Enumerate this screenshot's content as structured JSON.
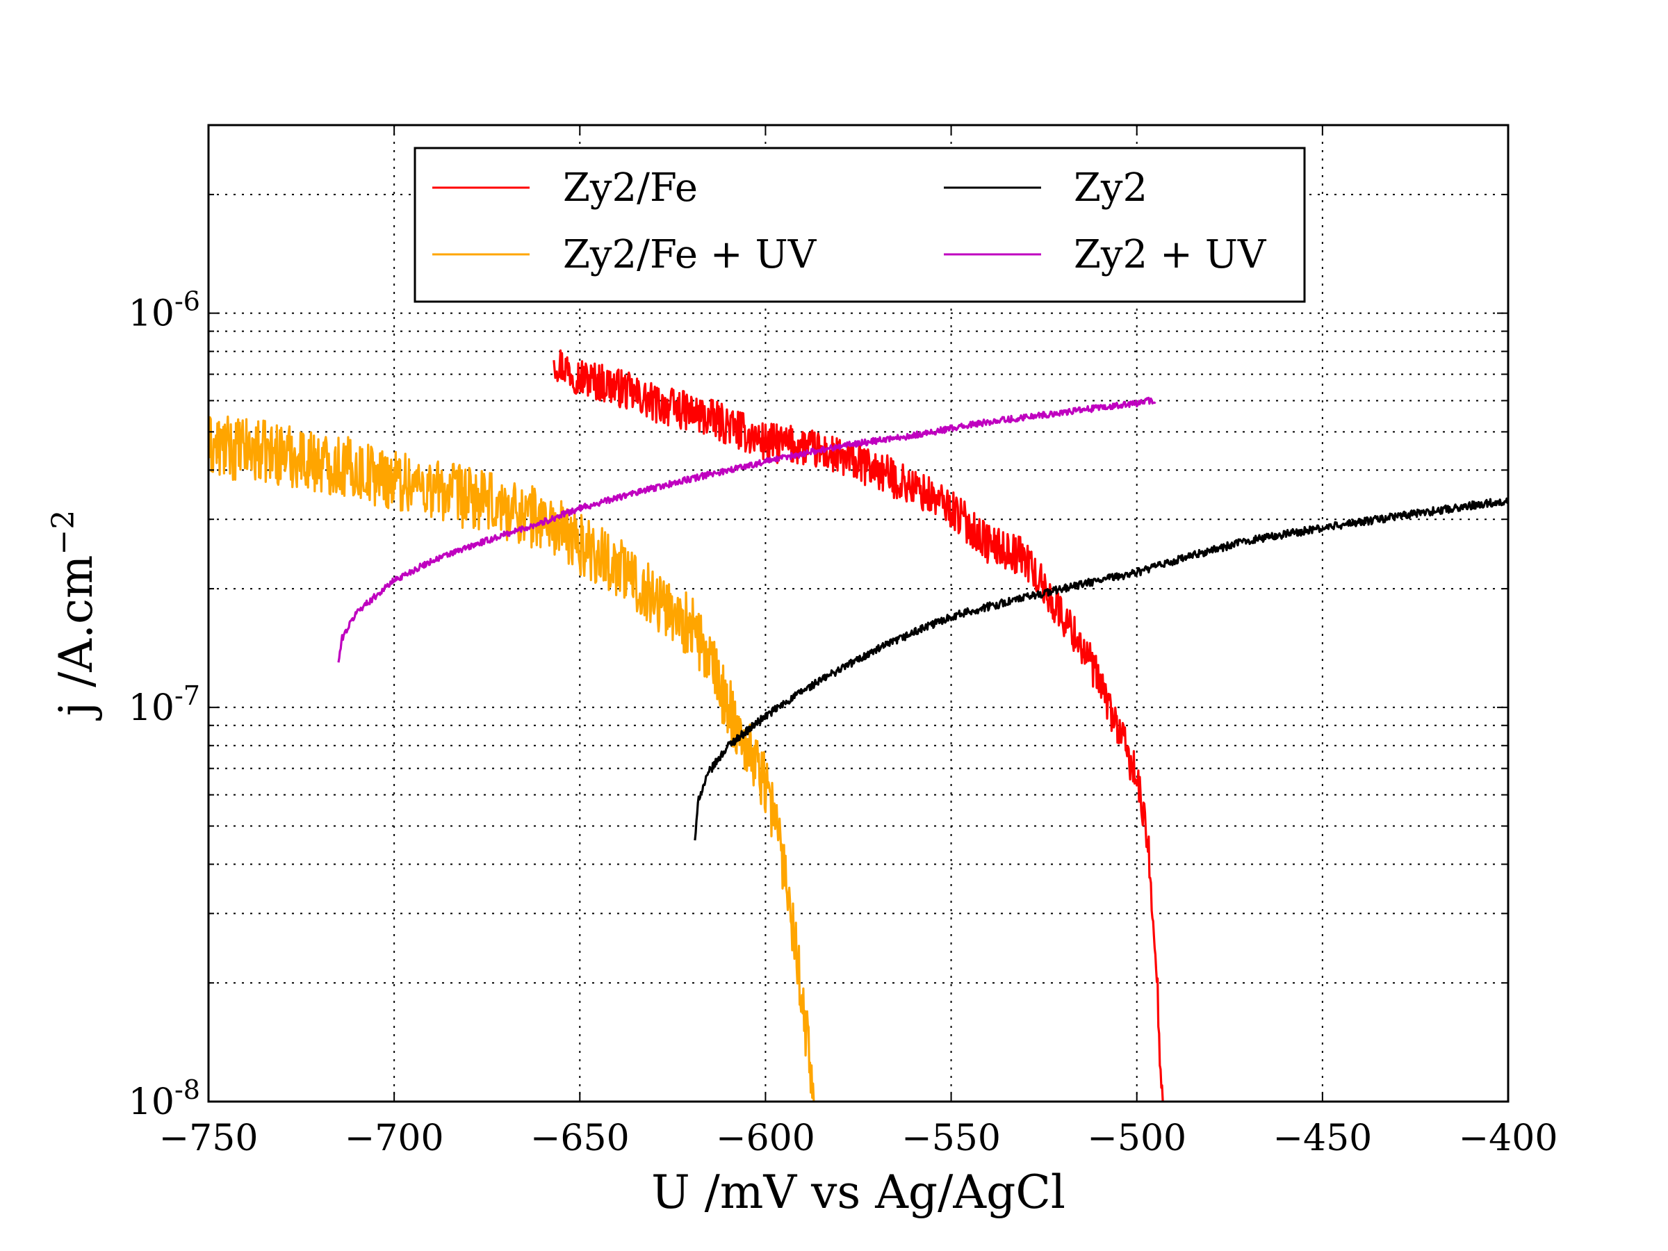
{
  "chart_data": {
    "type": "line",
    "xlabel": "U /mV vs Ag/AgCl",
    "ylabel_main": "j /A.cm",
    "ylabel_sup": "−2",
    "xlim": [
      -750,
      -400
    ],
    "ylim": [
      1e-08,
      3e-06
    ],
    "yscale": "log",
    "grid": true,
    "legend_position": "upper center",
    "x_ticks": [
      -750,
      -700,
      -650,
      -600,
      -550,
      -500,
      -450,
      -400
    ],
    "x_tick_labels": [
      "−750",
      "−700",
      "−650",
      "−600",
      "−550",
      "−500",
      "−450",
      "−400"
    ],
    "y_major_ticks": [
      1e-08,
      1e-07,
      1e-06
    ],
    "y_tick_labels": [
      {
        "base": "10",
        "exp": "-8"
      },
      {
        "base": "10",
        "exp": "-7"
      },
      {
        "base": "10",
        "exp": "-6"
      }
    ],
    "series": [
      {
        "name": "Zy2/Fe",
        "color": "#ff0000",
        "noise": 0.05,
        "points": [
          [
            -657,
            7.6e-07
          ],
          [
            -650,
            6.9e-07
          ],
          [
            -640,
            6.5e-07
          ],
          [
            -630,
            5.9e-07
          ],
          [
            -620,
            5.6e-07
          ],
          [
            -610,
            5.2e-07
          ],
          [
            -600,
            4.7e-07
          ],
          [
            -590,
            4.6e-07
          ],
          [
            -580,
            4.3e-07
          ],
          [
            -570,
            4e-07
          ],
          [
            -560,
            3.6e-07
          ],
          [
            -550,
            3.2e-07
          ],
          [
            -540,
            2.6e-07
          ],
          [
            -530,
            2.4e-07
          ],
          [
            -525,
            2e-07
          ],
          [
            -520,
            1.7e-07
          ],
          [
            -515,
            1.45e-07
          ],
          [
            -510,
            1.15e-07
          ],
          [
            -505,
            8.8e-08
          ],
          [
            -500,
            6.6e-08
          ],
          [
            -497,
            4.5e-08
          ],
          [
            -495,
            2.5e-08
          ],
          [
            -494,
            1.5e-08
          ],
          [
            -493,
            1e-08
          ]
        ]
      },
      {
        "name": "Zy2/Fe + UV",
        "color": "#ffa500",
        "noise": 0.08,
        "points": [
          [
            -750,
            4.6e-07
          ],
          [
            -740,
            4.5e-07
          ],
          [
            -730,
            4.4e-07
          ],
          [
            -720,
            4.2e-07
          ],
          [
            -710,
            4e-07
          ],
          [
            -700,
            3.8e-07
          ],
          [
            -690,
            3.6e-07
          ],
          [
            -680,
            3.4e-07
          ],
          [
            -670,
            3.2e-07
          ],
          [
            -660,
            3e-07
          ],
          [
            -650,
            2.6e-07
          ],
          [
            -640,
            2.3e-07
          ],
          [
            -630,
            1.9e-07
          ],
          [
            -620,
            1.6e-07
          ],
          [
            -615,
            1.3e-07
          ],
          [
            -610,
            1e-07
          ],
          [
            -605,
            8e-08
          ],
          [
            -600,
            6.5e-08
          ],
          [
            -597,
            5e-08
          ],
          [
            -594,
            3.5e-08
          ],
          [
            -591,
            2.2e-08
          ],
          [
            -589,
            1.5e-08
          ],
          [
            -587,
            1e-08
          ]
        ]
      },
      {
        "name": "Zy2",
        "color": "#000000",
        "noise": 0.01,
        "points": [
          [
            -619,
            4.6e-08
          ],
          [
            -618,
            5.9e-08
          ],
          [
            -615,
            6.9e-08
          ],
          [
            -610,
            8e-08
          ],
          [
            -600,
            9.5e-08
          ],
          [
            -590,
            1.1e-07
          ],
          [
            -580,
            1.25e-07
          ],
          [
            -570,
            1.4e-07
          ],
          [
            -560,
            1.55e-07
          ],
          [
            -550,
            1.7e-07
          ],
          [
            -540,
            1.8e-07
          ],
          [
            -530,
            1.9e-07
          ],
          [
            -520,
            2e-07
          ],
          [
            -510,
            2.1e-07
          ],
          [
            -500,
            2.2e-07
          ],
          [
            -490,
            2.35e-07
          ],
          [
            -480,
            2.5e-07
          ],
          [
            -470,
            2.65e-07
          ],
          [
            -460,
            2.75e-07
          ],
          [
            -450,
            2.85e-07
          ],
          [
            -440,
            2.95e-07
          ],
          [
            -430,
            3.05e-07
          ],
          [
            -420,
            3.15e-07
          ],
          [
            -410,
            3.25e-07
          ],
          [
            -400,
            3.35e-07
          ]
        ]
      },
      {
        "name": "Zy2 + UV",
        "color": "#bf00bf",
        "noise": 0.008,
        "points": [
          [
            -715,
            1.3e-07
          ],
          [
            -714,
            1.5e-07
          ],
          [
            -710,
            1.75e-07
          ],
          [
            -700,
            2.1e-07
          ],
          [
            -690,
            2.35e-07
          ],
          [
            -680,
            2.55e-07
          ],
          [
            -670,
            2.75e-07
          ],
          [
            -660,
            2.95e-07
          ],
          [
            -650,
            3.2e-07
          ],
          [
            -640,
            3.4e-07
          ],
          [
            -630,
            3.6e-07
          ],
          [
            -620,
            3.8e-07
          ],
          [
            -610,
            4e-07
          ],
          [
            -600,
            4.2e-07
          ],
          [
            -590,
            4.4e-07
          ],
          [
            -580,
            4.6e-07
          ],
          [
            -570,
            4.75e-07
          ],
          [
            -560,
            4.9e-07
          ],
          [
            -550,
            5.1e-07
          ],
          [
            -540,
            5.3e-07
          ],
          [
            -530,
            5.45e-07
          ],
          [
            -520,
            5.6e-07
          ],
          [
            -510,
            5.75e-07
          ],
          [
            -500,
            5.9e-07
          ],
          [
            -497,
            6e-07
          ],
          [
            -495,
            5.95e-07
          ]
        ]
      }
    ]
  }
}
